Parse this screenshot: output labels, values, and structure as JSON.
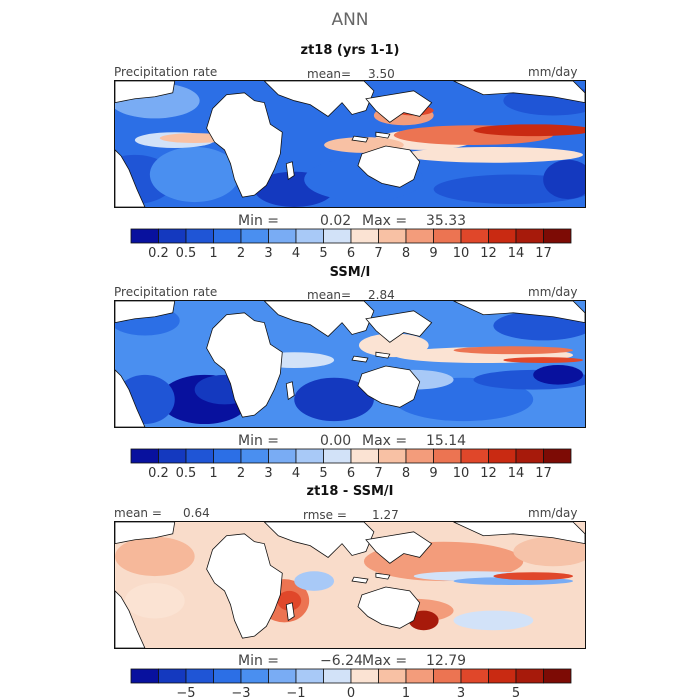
{
  "season": "ANN",
  "panels": [
    {
      "title": "zt18 (yrs 1-1)",
      "left_label": "Precipitation rate",
      "stat_label": "mean=",
      "stat_value": "3.50",
      "units": "mm/day",
      "min_label": "Min =",
      "min_value": "0.02",
      "max_label": "Max =",
      "max_value": "35.33",
      "field": "precip-model"
    },
    {
      "title": "SSM/I",
      "left_label": "Precipitation rate",
      "stat_label": "mean=",
      "stat_value": "2.84",
      "units": "mm/day",
      "min_label": "Min =",
      "min_value": "0.00",
      "max_label": "Max =",
      "max_value": "15.14",
      "field": "precip-obs"
    },
    {
      "title": "zt18 - SSM/I",
      "left_label": "mean =",
      "left_value": "0.64",
      "stat_label": "rmse =",
      "stat_value": "1.27",
      "units": "mm/day",
      "min_label": "Min =",
      "min_value": "−6.24",
      "max_label": "Max =",
      "max_value": "12.79",
      "field": "difference"
    }
  ],
  "colorbars": {
    "precip": {
      "colors": [
        "#08119e",
        "#1439bf",
        "#1f55d6",
        "#2c6fe6",
        "#4a8ff0",
        "#79acf4",
        "#a8c9f7",
        "#d2e2f8",
        "#fbe3d3",
        "#f8c1a4",
        "#f39c7b",
        "#ec7452",
        "#e0472a",
        "#c92a12",
        "#a71a0b",
        "#7d0b05"
      ],
      "labels": [
        "0.2",
        "0.5",
        "1",
        "2",
        "3",
        "4",
        "5",
        "6",
        "7",
        "8",
        "9",
        "10",
        "12",
        "14",
        "17"
      ]
    },
    "diff": {
      "colors": [
        "#08119e",
        "#1439bf",
        "#1f55d6",
        "#2c6fe6",
        "#4a8ff0",
        "#79acf4",
        "#a8c9f7",
        "#d2e2f8",
        "#fbe3d3",
        "#f8c1a4",
        "#f39c7b",
        "#ec7452",
        "#e0472a",
        "#c92a12",
        "#a71a0b",
        "#7d0b05"
      ],
      "labels": [
        "−5",
        "−3",
        "−1",
        "0",
        "1",
        "3",
        "5"
      ],
      "label_slots": [
        2,
        4,
        6,
        8,
        10,
        12,
        14
      ]
    }
  }
}
